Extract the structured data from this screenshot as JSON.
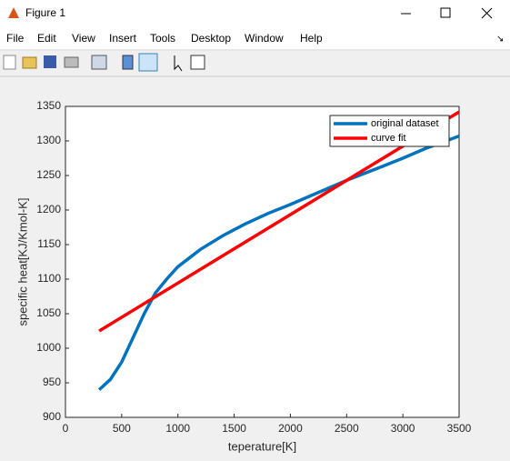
{
  "window": {
    "title": "Figure 1"
  },
  "menu": [
    "File",
    "Edit",
    "View",
    "Insert",
    "Tools",
    "Desktop",
    "Window",
    "Help"
  ],
  "chart_data": {
    "type": "line",
    "x_label": "teperature[K]",
    "y_label": "specific heat[KJ/Kmol-K]",
    "series": [
      {
        "name": "original dataset",
        "color": "#0072bd",
        "x": [
          300,
          400,
          500,
          600,
          700,
          800,
          900,
          1000,
          1200,
          1400,
          1600,
          1800,
          2000,
          2200,
          2500,
          2800,
          3000,
          3200,
          3500
        ],
        "values": [
          940,
          955,
          980,
          1015,
          1050,
          1080,
          1100,
          1118,
          1143,
          1163,
          1180,
          1195,
          1208,
          1222,
          1243,
          1262,
          1275,
          1289,
          1307
        ]
      },
      {
        "name": "curve fit",
        "color": "#ff0000",
        "x": [
          300,
          3500
        ],
        "values": [
          1025,
          1342
        ]
      }
    ],
    "xlim": [
      0,
      3500
    ],
    "xticks": [
      0,
      500,
      1000,
      1500,
      2000,
      2500,
      3000,
      3500
    ],
    "ylim": [
      900,
      1350
    ],
    "yticks": [
      900,
      950,
      1000,
      1050,
      1100,
      1150,
      1200,
      1250,
      1300,
      1350
    ],
    "legend": "top-right"
  }
}
